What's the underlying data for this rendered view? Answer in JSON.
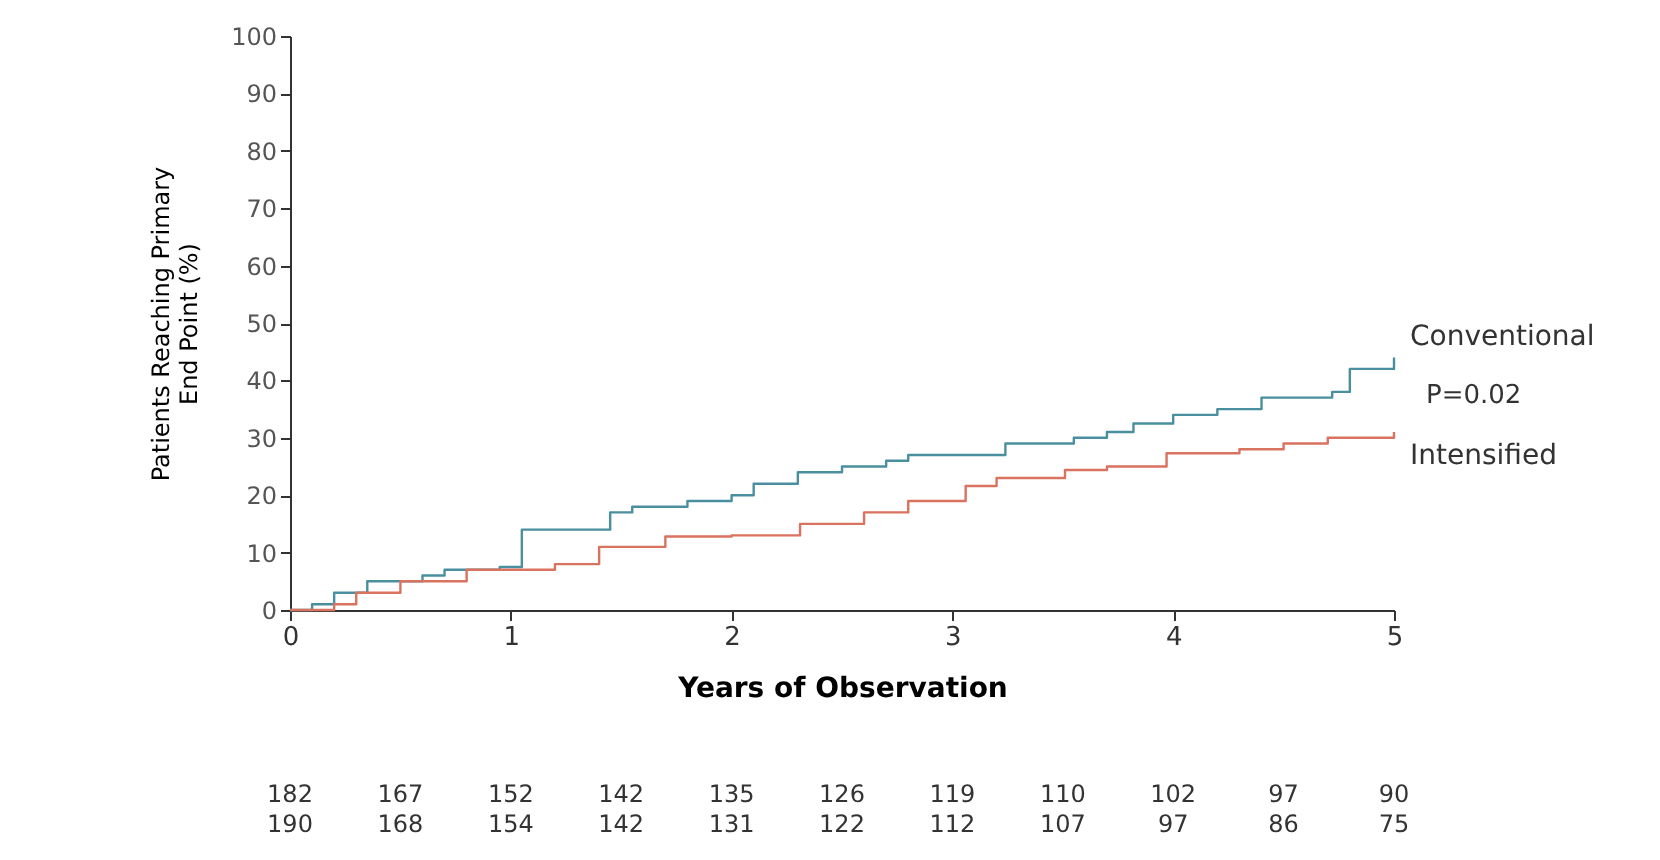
{
  "chart_data": {
    "type": "step",
    "xlabel": "Years of Observation",
    "ylabel": "Patients Reaching Primary\nEnd Point (%)",
    "xlim": [
      0,
      5
    ],
    "xticks": [
      0,
      1,
      2,
      3,
      4,
      5
    ],
    "ylim": [
      0,
      100
    ],
    "yticks": [
      0,
      10,
      20,
      30,
      40,
      50,
      60,
      70,
      80,
      90,
      100
    ],
    "grid": false,
    "marker": "none",
    "line_style": "solid",
    "series": [
      {
        "name": "Conventional",
        "color": "#4a8fa0",
        "x": [
          0,
          0.1,
          0.2,
          0.35,
          0.6,
          0.7,
          0.95,
          1.05,
          1.35,
          1.45,
          1.55,
          1.8,
          2.0,
          2.1,
          2.3,
          2.5,
          2.7,
          2.8,
          3.0,
          3.24,
          3.55,
          3.7,
          3.82,
          4.0,
          4.2,
          4.4,
          4.72,
          4.8,
          5.0
        ],
        "values": [
          0,
          1,
          3,
          5,
          6,
          7,
          7.5,
          14,
          14,
          17,
          18,
          19,
          20,
          22,
          24,
          25,
          26,
          27,
          27,
          29,
          30,
          31,
          32.5,
          34,
          35,
          37,
          38,
          42,
          44
        ]
      },
      {
        "name": "Intensified",
        "color": "#d9735f",
        "x": [
          0,
          0.2,
          0.3,
          0.5,
          0.8,
          1.2,
          1.4,
          1.7,
          2.0,
          2.31,
          2.6,
          2.8,
          3.06,
          3.2,
          3.51,
          3.7,
          3.97,
          4.3,
          4.5,
          4.7,
          5.0
        ],
        "values": [
          0,
          1,
          3,
          5,
          7,
          8,
          11,
          12.8,
          13,
          15,
          17,
          19,
          21.6,
          23,
          24.4,
          25,
          27.3,
          28,
          29,
          30,
          31
        ]
      }
    ],
    "annotations": [
      "P=0.02",
      "182 167 152 142 135 126 119 110 102 97 90",
      "190 168 154 142 131 122 112 107 97 86 75"
    ]
  }
}
